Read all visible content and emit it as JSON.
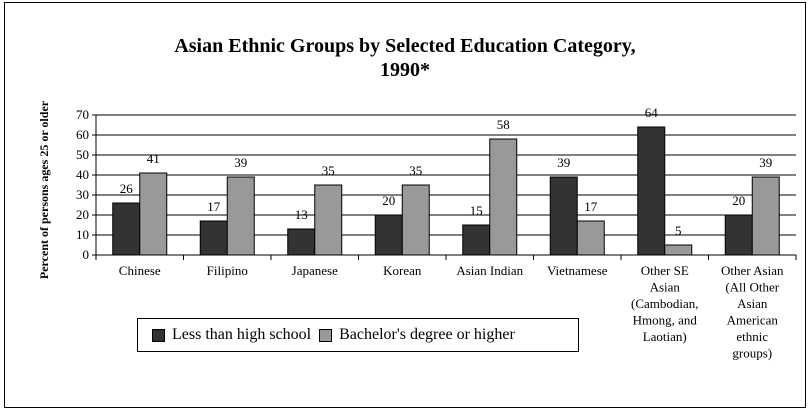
{
  "chart_data": {
    "type": "bar",
    "title_line1": "Asian Ethnic Groups by Selected Education Category,",
    "title_line2": "1990*",
    "ylabel": "Percent of persons ages 25 or older",
    "xlabel": "",
    "ylim": [
      0,
      70
    ],
    "yticks": [
      0,
      10,
      20,
      30,
      40,
      50,
      60,
      70
    ],
    "grid": true,
    "legend_position": "bottom-left",
    "categories": [
      [
        "Chinese"
      ],
      [
        "Filipino"
      ],
      [
        "Japanese"
      ],
      [
        "Korean"
      ],
      [
        "Asian Indian"
      ],
      [
        "Vietnamese"
      ],
      [
        "Other SE",
        "Asian",
        "(Cambodian,",
        "Hmong, and",
        "Laotian)"
      ],
      [
        "Other Asian",
        "(All Other",
        "Asian",
        "American",
        "ethnic",
        "groups)"
      ]
    ],
    "series": [
      {
        "name": "Less than high school",
        "color": "#333333",
        "values": [
          26,
          17,
          13,
          20,
          15,
          39,
          64,
          20
        ]
      },
      {
        "name": "Bachelor's degree or higher",
        "color": "#999999",
        "values": [
          41,
          39,
          35,
          35,
          58,
          17,
          5,
          39
        ]
      }
    ]
  }
}
